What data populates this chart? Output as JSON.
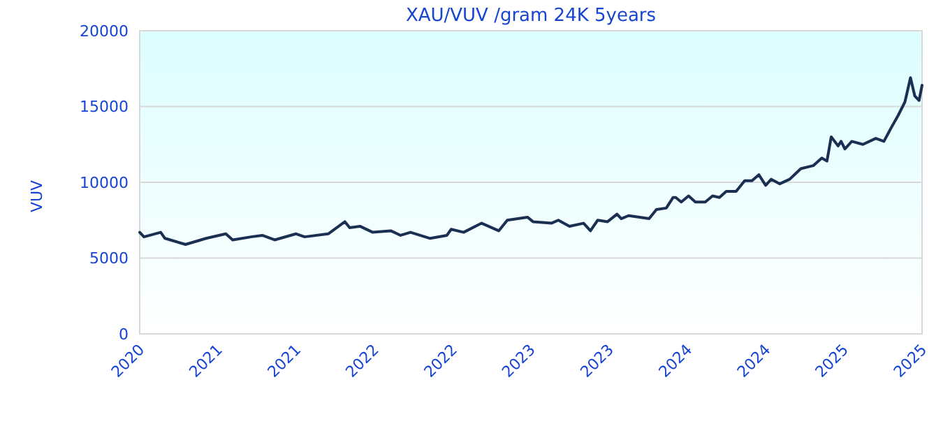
{
  "chart_data": {
    "type": "line",
    "title": "XAU/VUV /gram 24K 5years",
    "ylabel": "VUV",
    "xlim": [
      "2020-10-15",
      "2025-10-15"
    ],
    "ylim": [
      0,
      20000
    ],
    "yticks": [
      0,
      5000,
      10000,
      15000,
      20000
    ],
    "xticks": [
      {
        "value": "2020-10-15",
        "label": "2020"
      },
      {
        "value": "2021-04-15",
        "label": "2021"
      },
      {
        "value": "2021-10-15",
        "label": "2021"
      },
      {
        "value": "2022-04-15",
        "label": "2022"
      },
      {
        "value": "2022-10-15",
        "label": "2022"
      },
      {
        "value": "2023-04-15",
        "label": "2023"
      },
      {
        "value": "2023-10-15",
        "label": "2023"
      },
      {
        "value": "2024-04-15",
        "label": "2024"
      },
      {
        "value": "2024-10-15",
        "label": "2024"
      },
      {
        "value": "2025-04-15",
        "label": "2025"
      },
      {
        "value": "2025-10-15",
        "label": "2025"
      }
    ],
    "grid": "y",
    "marker": "none",
    "line_style": "solid",
    "x": [
      "2020-10-15",
      "2020-10-25",
      "2020-12-03",
      "2020-12-13",
      "2021-01-30",
      "2021-03-19",
      "2021-05-04",
      "2021-05-20",
      "2021-07-02",
      "2021-07-28",
      "2021-08-26",
      "2021-10-15",
      "2021-11-04",
      "2021-12-29",
      "2022-02-06",
      "2022-02-17",
      "2022-03-13",
      "2022-04-12",
      "2022-05-24",
      "2022-06-16",
      "2022-07-09",
      "2022-08-24",
      "2022-10-02",
      "2022-10-12",
      "2022-11-10",
      "2022-12-22",
      "2023-01-31",
      "2023-02-20",
      "2023-04-08",
      "2023-04-21",
      "2023-06-03",
      "2023-06-19",
      "2023-07-15",
      "2023-08-17",
      "2023-09-02",
      "2023-09-19",
      "2023-10-12",
      "2023-11-03",
      "2023-11-13",
      "2023-11-30",
      "2024-01-17",
      "2024-02-03",
      "2024-02-26",
      "2024-03-13",
      "2024-03-19",
      "2024-04-01",
      "2024-04-18",
      "2024-05-04",
      "2024-05-27",
      "2024-06-13",
      "2024-06-29",
      "2024-07-15",
      "2024-08-07",
      "2024-08-27",
      "2024-09-13",
      "2024-09-29",
      "2024-10-15",
      "2024-10-28",
      "2024-11-17",
      "2024-12-10",
      "2025-01-05",
      "2025-02-03",
      "2025-02-23",
      "2025-03-07",
      "2025-03-17",
      "2025-04-02",
      "2025-04-09",
      "2025-04-18",
      "2025-05-04",
      "2025-05-30",
      "2025-06-29",
      "2025-07-18",
      "2025-08-04",
      "2025-08-20",
      "2025-09-05",
      "2025-09-18",
      "2025-09-28",
      "2025-10-08",
      "2025-10-15"
    ],
    "series": [
      {
        "color": "#1b2f52",
        "values": [
          6700,
          6400,
          6700,
          6300,
          5900,
          6300,
          6600,
          6200,
          6400,
          6500,
          6200,
          6600,
          6400,
          6600,
          7400,
          7000,
          7100,
          6700,
          6800,
          6500,
          6700,
          6300,
          6500,
          6900,
          6700,
          7300,
          6800,
          7500,
          7700,
          7400,
          7300,
          7500,
          7100,
          7300,
          6800,
          7500,
          7400,
          7900,
          7600,
          7800,
          7600,
          8200,
          8300,
          9000,
          9000,
          8700,
          9100,
          8700,
          8700,
          9100,
          9000,
          9400,
          9400,
          10100,
          10100,
          10500,
          9800,
          10200,
          9900,
          10200,
          10900,
          11100,
          11600,
          11400,
          13000,
          12400,
          12700,
          12200,
          12700,
          12500,
          12900,
          12700,
          13600,
          14400,
          15300,
          16900,
          15700,
          15400,
          16400
        ]
      }
    ]
  }
}
